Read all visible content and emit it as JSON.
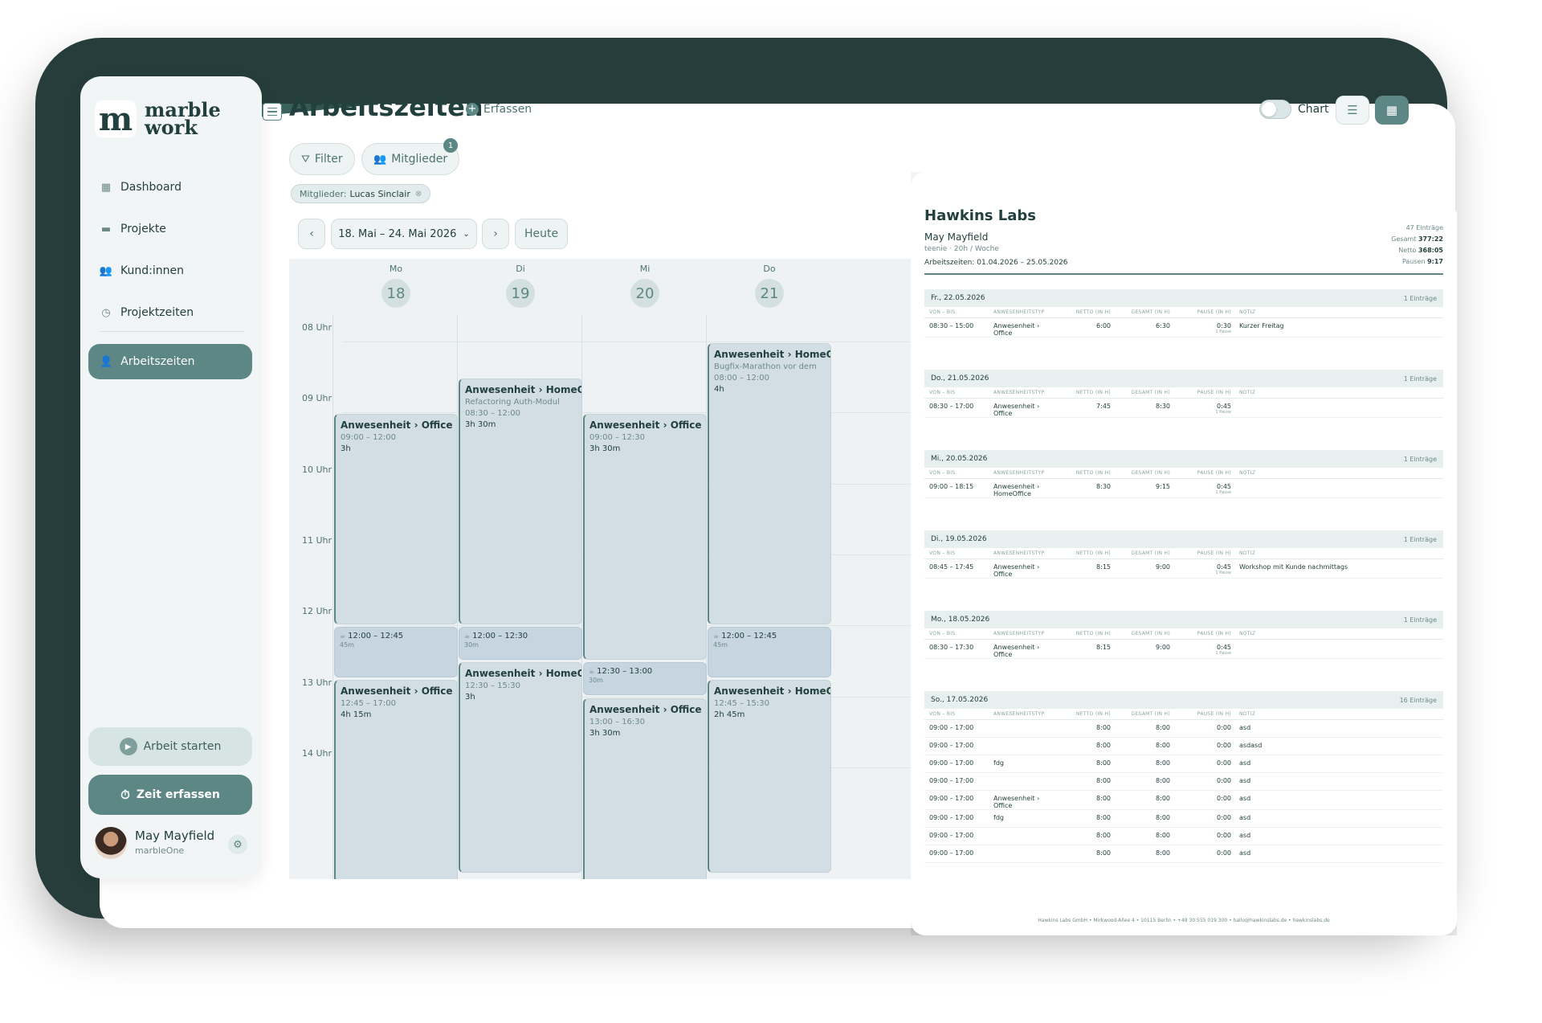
{
  "app": {
    "logo_mark": "m",
    "logo_line1": "marble",
    "logo_line2": "work"
  },
  "sidebar": {
    "items": [
      {
        "label": "Dashboard",
        "icon": "dashboard-icon"
      },
      {
        "label": "Projekte",
        "icon": "folder-icon"
      },
      {
        "label": "Kund:innen",
        "icon": "users-icon"
      },
      {
        "label": "Projektzeiten",
        "icon": "timer-icon"
      }
    ],
    "active_label": "Arbeitszeiten",
    "start_label": "Arbeit starten",
    "zeit_label": "Zeit erfassen",
    "user_name": "May Mayfield",
    "user_org": "marbleOne"
  },
  "header": {
    "title": "Arbeitszeiten",
    "erfassen_label": "Erfassen",
    "chart_label": "Chart",
    "filter_label": "Filter",
    "mitglieder_label": "Mitglieder",
    "mitglieder_badge": "1",
    "member_tag_prefix": "Mitglieder:",
    "member_tag_name": "Lucas Sinclair",
    "range_label": "18. Mai – 24. Mai 2026",
    "heute_label": "Heute"
  },
  "calendar": {
    "days": [
      {
        "name": "Mo",
        "num": "18"
      },
      {
        "name": "Di",
        "num": "19"
      },
      {
        "name": "Mi",
        "num": "20"
      },
      {
        "name": "Do",
        "num": "21"
      }
    ],
    "hours": [
      "08 Uhr",
      "09 Uhr",
      "10 Uhr",
      "11 Uhr",
      "12 Uhr",
      "13 Uhr",
      "14 Uhr"
    ],
    "events": [
      {
        "day": 0,
        "start": 9.0,
        "end": 12.0,
        "title": "Anwesenheit › Office",
        "sub": "",
        "time": "09:00 – 12:00",
        "dur": "3h"
      },
      {
        "day": 0,
        "start": 12.75,
        "end": 17.0,
        "title": "Anwesenheit › Office",
        "sub": "",
        "time": "12:45 – 17:00",
        "dur": "4h 15m"
      },
      {
        "day": 1,
        "start": 8.5,
        "end": 12.0,
        "title": "Anwesenheit › HomeOffice",
        "sub": "Refactoring Auth-Modul",
        "time": "08:30 – 12:00",
        "dur": "3h 30m"
      },
      {
        "day": 1,
        "start": 12.5,
        "end": 15.5,
        "title": "Anwesenheit › HomeOffice",
        "sub": "",
        "time": "12:30 – 15:30",
        "dur": "3h"
      },
      {
        "day": 2,
        "start": 9.0,
        "end": 12.5,
        "title": "Anwesenheit › Office",
        "sub": "",
        "time": "09:00 – 12:30",
        "dur": "3h 30m"
      },
      {
        "day": 2,
        "start": 13.0,
        "end": 16.5,
        "title": "Anwesenheit › Office",
        "sub": "",
        "time": "13:00 – 16:30",
        "dur": "3h 30m"
      },
      {
        "day": 3,
        "start": 8.0,
        "end": 12.0,
        "title": "Anwesenheit › HomeOffice",
        "sub": "Bugfix-Marathon vor dem",
        "time": "08:00 – 12:00",
        "dur": "4h"
      },
      {
        "day": 3,
        "start": 12.75,
        "end": 15.5,
        "title": "Anwesenheit › HomeOffice",
        "sub": "",
        "time": "12:45 – 15:30",
        "dur": "2h 45m"
      }
    ],
    "pauses": [
      {
        "day": 0,
        "start": 12.0,
        "end": 12.75,
        "time": "12:00 – 12:45",
        "dur": "45m"
      },
      {
        "day": 1,
        "start": 12.0,
        "end": 12.5,
        "time": "12:00 – 12:30",
        "dur": "30m"
      },
      {
        "day": 2,
        "start": 12.5,
        "end": 13.0,
        "time": "12:30 – 13:00",
        "dur": "30m"
      },
      {
        "day": 3,
        "start": 12.0,
        "end": 12.75,
        "time": "12:00 – 12:45",
        "dur": "45m"
      }
    ]
  },
  "pdf": {
    "company": "Hawkins Labs",
    "person": "May Mayfield",
    "meta": "teenie · 20h / Woche",
    "period": "Arbeitszeiten: 01.04.2026 – 25.05.2026",
    "entries_total": "47 Einträge",
    "gesamt_label": "Gesamt",
    "gesamt_value": "377:22",
    "netto_label": "Netto",
    "netto_value": "368:05",
    "pausen_label": "Pausen",
    "pausen_value": "9:17",
    "columns": [
      "VON – BIS",
      "ANWESENHEITSTYP",
      "NETTO (IN H)",
      "GESAMT (IN H)",
      "PAUSE (IN H)",
      "NOTIZ"
    ],
    "sections": [
      {
        "date": "Fr., 22.05.2026",
        "count": "1 Einträge",
        "rows": [
          {
            "range": "08:30 – 15:00",
            "type1": "Anwesenheit ›",
            "type2": "Office",
            "netto": "6:00",
            "gesamt": "6:30",
            "pause": "0:30",
            "pause_sub": "1 Pause",
            "note": "Kurzer Freitag"
          }
        ]
      },
      {
        "date": "Do., 21.05.2026",
        "count": "1 Einträge",
        "rows": [
          {
            "range": "08:30 – 17:00",
            "type1": "Anwesenheit ›",
            "type2": "Office",
            "netto": "7:45",
            "gesamt": "8:30",
            "pause": "0:45",
            "pause_sub": "1 Pause",
            "note": ""
          }
        ]
      },
      {
        "date": "Mi., 20.05.2026",
        "count": "1 Einträge",
        "rows": [
          {
            "range": "09:00 – 18:15",
            "type1": "Anwesenheit ›",
            "type2": "HomeOffice",
            "netto": "8:30",
            "gesamt": "9:15",
            "pause": "0:45",
            "pause_sub": "1 Pause",
            "note": ""
          }
        ]
      },
      {
        "date": "Di., 19.05.2026",
        "count": "1 Einträge",
        "rows": [
          {
            "range": "08:45 – 17:45",
            "type1": "Anwesenheit ›",
            "type2": "Office",
            "netto": "8:15",
            "gesamt": "9:00",
            "pause": "0:45",
            "pause_sub": "1 Pause",
            "note": "Workshop mit Kunde nachmittags"
          }
        ]
      },
      {
        "date": "Mo., 18.05.2026",
        "count": "1 Einträge",
        "rows": [
          {
            "range": "08:30 – 17:30",
            "type1": "Anwesenheit ›",
            "type2": "Office",
            "netto": "8:15",
            "gesamt": "9:00",
            "pause": "0:45",
            "pause_sub": "1 Pause",
            "note": ""
          }
        ]
      },
      {
        "date": "So., 17.05.2026",
        "count": "16 Einträge",
        "rows": [
          {
            "range": "09:00 – 17:00",
            "type1": "",
            "type2": "",
            "netto": "8:00",
            "gesamt": "8:00",
            "pause": "0:00",
            "pause_sub": "",
            "note": "asd"
          },
          {
            "range": "09:00 – 17:00",
            "type1": "",
            "type2": "",
            "netto": "8:00",
            "gesamt": "8:00",
            "pause": "0:00",
            "pause_sub": "",
            "note": "asdasd"
          },
          {
            "range": "09:00 – 17:00",
            "type1": "fdg",
            "type2": "",
            "netto": "8:00",
            "gesamt": "8:00",
            "pause": "0:00",
            "pause_sub": "",
            "note": "asd"
          },
          {
            "range": "09:00 – 17:00",
            "type1": "",
            "type2": "",
            "netto": "8:00",
            "gesamt": "8:00",
            "pause": "0:00",
            "pause_sub": "",
            "note": "asd"
          },
          {
            "range": "09:00 – 17:00",
            "type1": "Anwesenheit ›",
            "type2": "Office",
            "netto": "8:00",
            "gesamt": "8:00",
            "pause": "0:00",
            "pause_sub": "",
            "note": "asd"
          },
          {
            "range": "09:00 – 17:00",
            "type1": "fdg",
            "type2": "",
            "netto": "8:00",
            "gesamt": "8:00",
            "pause": "0:00",
            "pause_sub": "",
            "note": "asd"
          },
          {
            "range": "09:00 – 17:00",
            "type1": "",
            "type2": "",
            "netto": "8:00",
            "gesamt": "8:00",
            "pause": "0:00",
            "pause_sub": "",
            "note": "asd"
          },
          {
            "range": "09:00 – 17:00",
            "type1": "",
            "type2": "",
            "netto": "8:00",
            "gesamt": "8:00",
            "pause": "0:00",
            "pause_sub": "",
            "note": "asd"
          }
        ]
      }
    ],
    "footer": "Hawkins Labs GmbH • Mirkwood-Allee 4 • 10115 Berlin • +49 30 555 019 300 • hallo@hawkinslabs.de • hawkinslabs.de"
  }
}
